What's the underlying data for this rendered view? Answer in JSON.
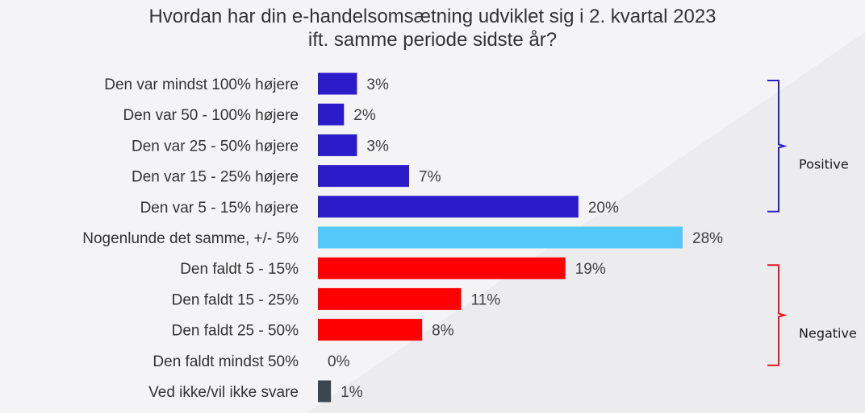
{
  "chart_data": {
    "type": "bar",
    "orientation": "horizontal",
    "title_line1": "Hvordan har din e-handelsomsætning udviklet sig i 2. kvartal 2023",
    "title_line2": "ift. samme periode sidste år?",
    "categories": [
      "Den var mindst 100% højere",
      "Den var 50 - 100% højere",
      "Den var 25 - 50% højere",
      "Den var 15 - 25% højere",
      "Den var 5 - 15% højere",
      "Nogenlunde det samme, +/- 5%",
      "Den faldt 5 - 15%",
      "Den faldt 15 - 25%",
      "Den faldt 25 - 50%",
      "Den faldt mindst 50%",
      "Ved ikke/vil ikke svare"
    ],
    "values": [
      3,
      2,
      3,
      7,
      20,
      28,
      19,
      11,
      8,
      0,
      1
    ],
    "value_labels": [
      "3%",
      "2%",
      "3%",
      "7%",
      "20%",
      "28%",
      "19%",
      "11%",
      "8%",
      "0%",
      "1%"
    ],
    "bar_colors": [
      "#2b1bc9",
      "#2b1bc9",
      "#2b1bc9",
      "#2b1bc9",
      "#2b1bc9",
      "#55c8fa",
      "#ff0000",
      "#ff0000",
      "#ff0000",
      "#ff0000",
      "#3c4650"
    ],
    "groups": [
      {
        "label": "Positive",
        "from": 0,
        "to": 4,
        "color": "#2b1bc9"
      },
      {
        "label": "Negative",
        "from": 6,
        "to": 9,
        "color": "#e8141e"
      }
    ],
    "xlim": [
      0,
      30
    ],
    "grid": false,
    "legend": "none"
  }
}
